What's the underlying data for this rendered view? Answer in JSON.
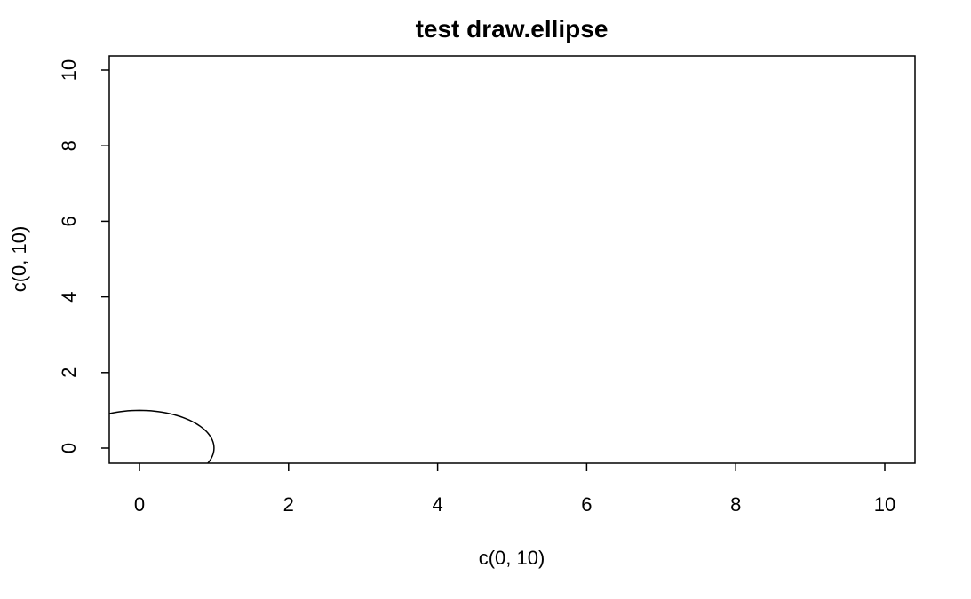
{
  "chart_data": {
    "type": "line",
    "title": "test draw.ellipse",
    "xlabel": "c(0, 10)",
    "ylabel": "c(0, 10)",
    "xlim": [
      0,
      10
    ],
    "ylim": [
      0,
      10
    ],
    "x_ticks": [
      0,
      2,
      4,
      6,
      8,
      10
    ],
    "y_ticks": [
      0,
      2,
      4,
      6,
      8,
      10
    ],
    "grid": false,
    "legend": "none",
    "ellipse": {
      "cx": 0,
      "cy": 0,
      "rx": 1,
      "ry": 1
    },
    "line_color": "#000000"
  }
}
